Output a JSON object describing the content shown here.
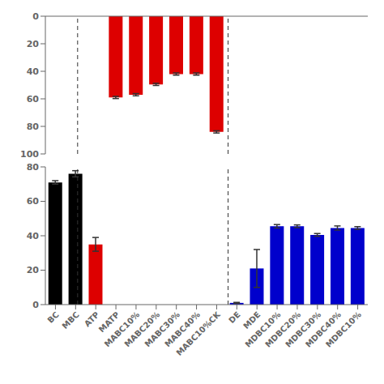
{
  "chart_data": [
    {
      "type": "bar",
      "categories": [
        "BC",
        "MBC",
        "ATP",
        "MATP",
        "MABC10%",
        "MABC20%",
        "MABC30%",
        "MABC40%",
        "MABC10%CK",
        "DE",
        "MDE",
        "MDBC10%",
        "MDBC20%",
        "MDBC30%",
        "MDBC40%",
        "MDBC10%"
      ],
      "values": [
        null,
        null,
        null,
        59,
        57,
        49.5,
        42,
        42,
        84,
        null,
        null,
        null,
        null,
        null,
        null,
        null
      ],
      "errors": [
        null,
        null,
        null,
        0.8,
        0.8,
        0.8,
        0.8,
        0.8,
        0.8,
        null,
        null,
        null,
        null,
        null,
        null,
        null
      ],
      "color": "#dd0000",
      "ylim": [
        100,
        0
      ],
      "yticks": [
        0,
        20,
        40,
        60,
        80,
        100
      ],
      "tick_labels": "y",
      "dividers": [
        1.5,
        8.5
      ]
    },
    {
      "type": "bar",
      "categories": [
        "BC",
        "MBC",
        "ATP",
        "MATP",
        "MABC10%",
        "MABC20%",
        "MABC30%",
        "MABC40%",
        "MABC10%CK",
        "DE",
        "MDE",
        "MDBC10%",
        "MDBC20%",
        "MDBC30%",
        "MDBC40%",
        "MDBC10%"
      ],
      "values": [
        71,
        76,
        35,
        null,
        null,
        null,
        null,
        null,
        null,
        1,
        21,
        45.5,
        45.5,
        40.5,
        44.5,
        44.5
      ],
      "errors": [
        1.0,
        1.8,
        4.0,
        null,
        null,
        null,
        null,
        null,
        null,
        0.3,
        11.0,
        1.0,
        0.8,
        0.8,
        1.2,
        0.8
      ],
      "colors": [
        "#000000",
        "#000000",
        "#dd0000",
        null,
        null,
        null,
        null,
        null,
        null,
        "#0000cc",
        "#0000cc",
        "#0000cc",
        "#0000cc",
        "#0000cc",
        "#0000cc",
        "#0000cc"
      ],
      "ylim": [
        0,
        80
      ],
      "yticks": [
        0,
        20,
        40,
        60,
        80
      ],
      "dividers": [
        1.5,
        8.5
      ]
    }
  ]
}
